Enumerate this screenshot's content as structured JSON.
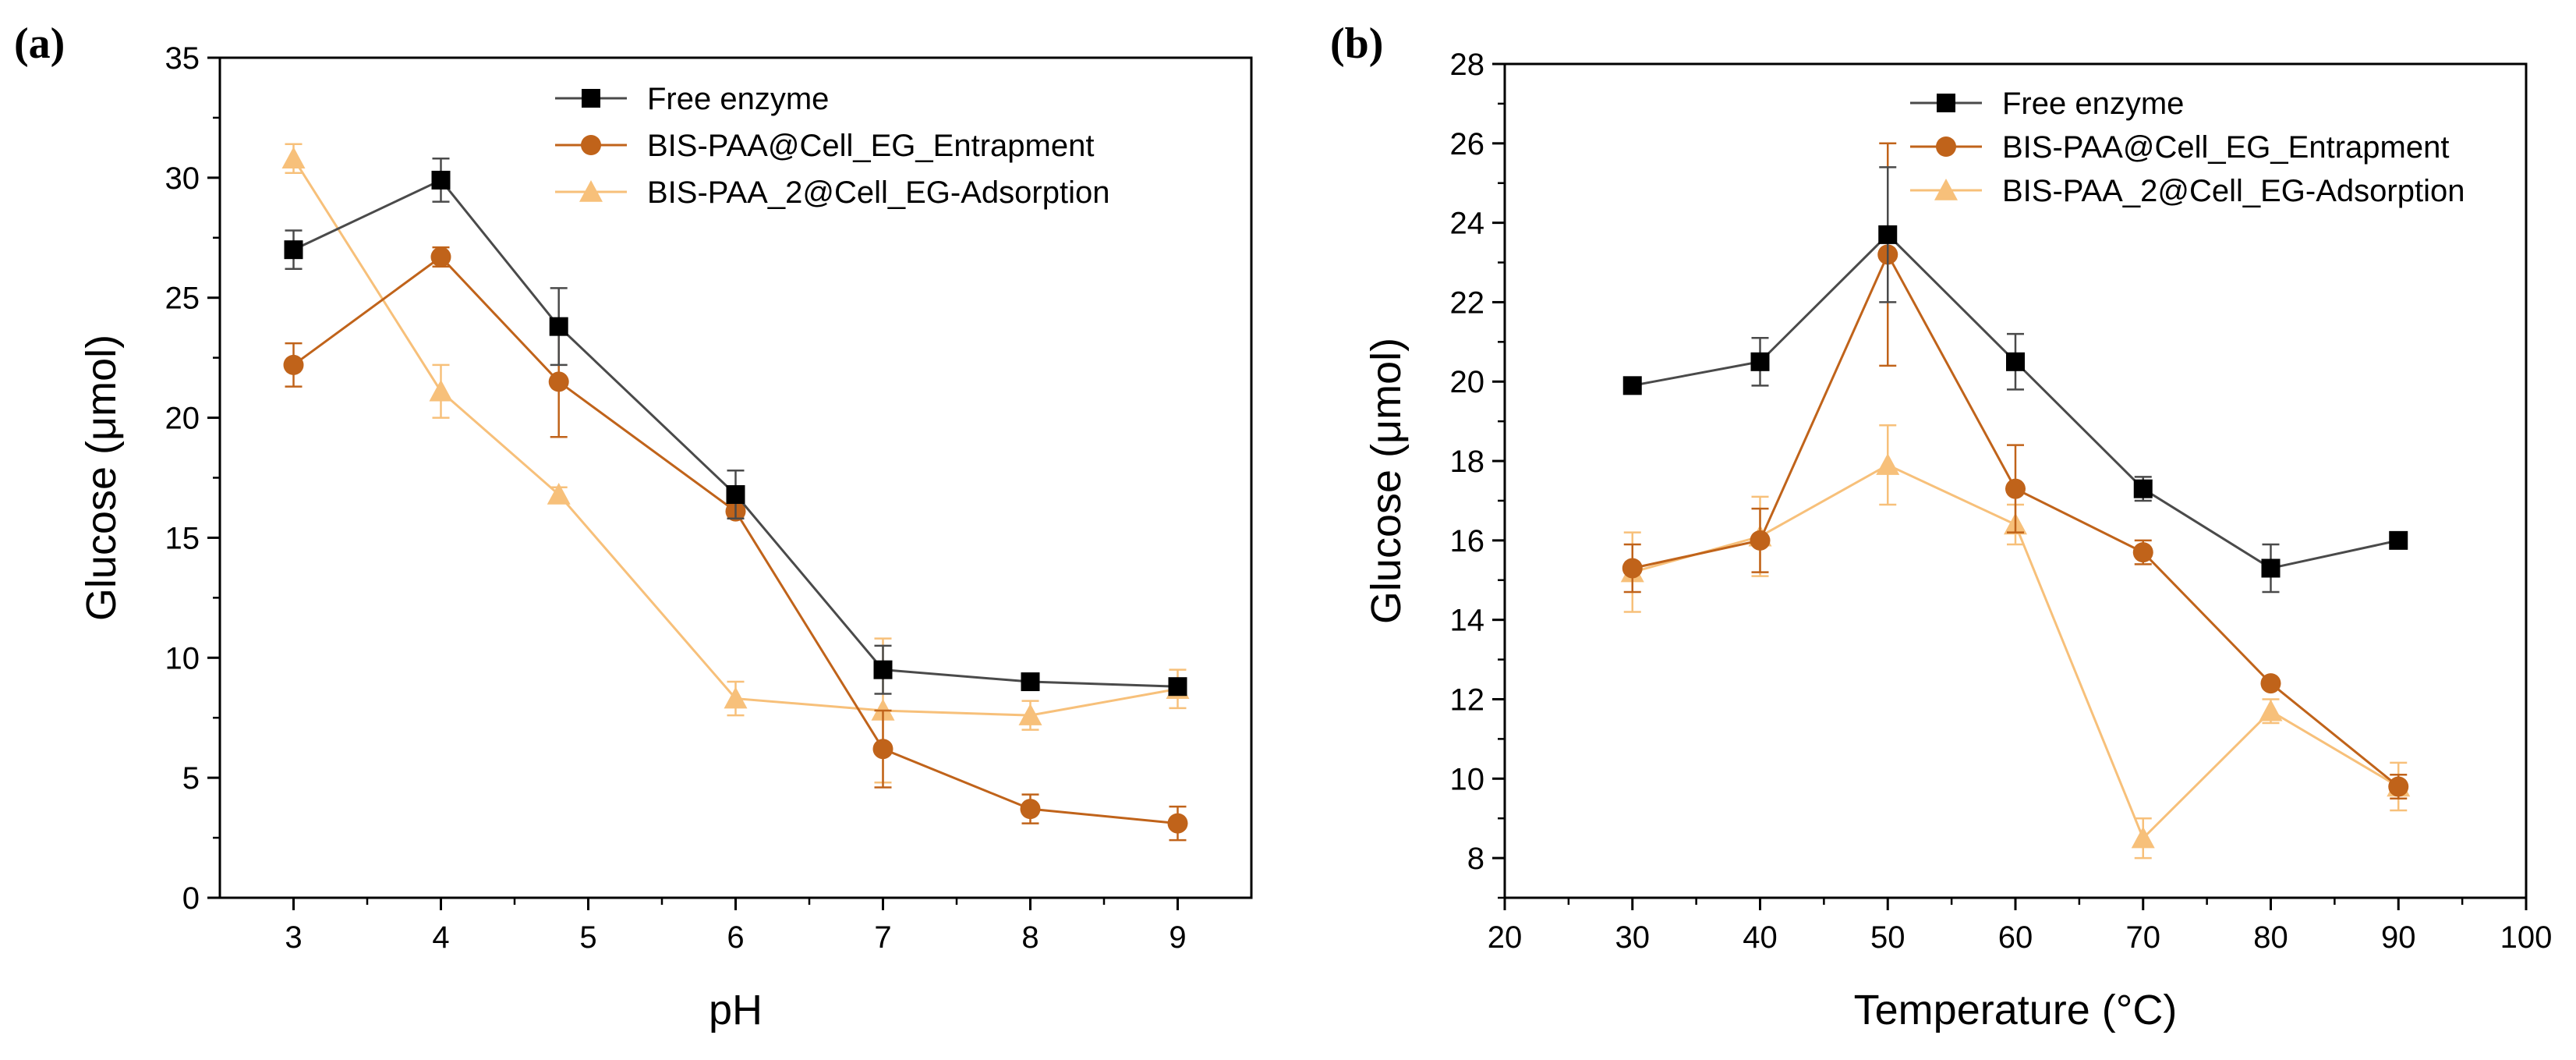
{
  "chart_data": [
    {
      "panel_label": "(a)",
      "type": "line",
      "xlabel": "pH",
      "ylabel": "Glucose (μmol)",
      "x": [
        3,
        4,
        4.8,
        6,
        7,
        8,
        9
      ],
      "xlim": [
        2.5,
        9.5
      ],
      "ylim": [
        0,
        35
      ],
      "xticks": [
        3,
        4,
        5,
        6,
        7,
        8,
        9
      ],
      "yticks": [
        0,
        5,
        10,
        15,
        20,
        25,
        30,
        35
      ],
      "grid": false,
      "legend_position": "top-right",
      "series": [
        {
          "name": "Free enzyme",
          "marker": "square",
          "color": "#000000",
          "line_color": "#4a4a4a",
          "values": [
            27.0,
            29.9,
            23.8,
            16.8,
            9.5,
            9.0,
            8.8
          ],
          "errors": [
            0.8,
            0.9,
            1.6,
            1.0,
            1.0,
            0.3,
            0.3
          ]
        },
        {
          "name": "BIS-PAA@Cell_EG_Entrapment",
          "marker": "circle",
          "color": "#c0631a",
          "line_color": "#c0631a",
          "values": [
            22.2,
            26.7,
            21.5,
            16.1,
            6.2,
            3.7,
            3.1
          ],
          "errors": [
            0.9,
            0.4,
            2.3,
            0.3,
            1.6,
            0.6,
            0.7
          ]
        },
        {
          "name": "BIS-PAA_2@Cell_EG-Adsorption",
          "marker": "triangle",
          "color": "#f7c07a",
          "line_color": "#f7c07a",
          "values": [
            30.8,
            21.1,
            16.8,
            8.3,
            7.8,
            7.6,
            8.7
          ],
          "errors": [
            0.6,
            1.1,
            0.3,
            0.7,
            3.0,
            0.6,
            0.8
          ]
        }
      ]
    },
    {
      "panel_label": "(b)",
      "type": "line",
      "xlabel": "Temperature (°C)",
      "ylabel": "Glucose (μmol)",
      "x": [
        30,
        40,
        50,
        60,
        70,
        80,
        90
      ],
      "xlim": [
        20,
        100
      ],
      "ylim": [
        7,
        28
      ],
      "xticks": [
        20,
        30,
        40,
        50,
        60,
        70,
        80,
        90,
        100
      ],
      "yticks": [
        8,
        10,
        12,
        14,
        16,
        18,
        20,
        22,
        24,
        26,
        28
      ],
      "grid": false,
      "legend_position": "top-right",
      "series": [
        {
          "name": "Free enzyme",
          "marker": "square",
          "color": "#000000",
          "line_color": "#4a4a4a",
          "values": [
            19.9,
            20.5,
            23.7,
            20.5,
            17.3,
            15.3,
            16.0
          ],
          "errors": [
            0.2,
            0.6,
            1.7,
            0.7,
            0.3,
            0.6,
            0.1
          ]
        },
        {
          "name": "BIS-PAA@Cell_EG_Entrapment",
          "marker": "circle",
          "color": "#c0631a",
          "line_color": "#c0631a",
          "values": [
            15.3,
            16.0,
            23.2,
            17.3,
            15.7,
            12.4,
            9.8
          ],
          "errors": [
            0.6,
            0.8,
            2.8,
            1.1,
            0.3,
            0.1,
            0.3
          ]
        },
        {
          "name": "BIS-PAA_2@Cell_EG-Adsorption",
          "marker": "triangle",
          "color": "#f7c07a",
          "line_color": "#f7c07a",
          "values": [
            15.2,
            16.1,
            17.9,
            16.4,
            8.5,
            11.7,
            9.8
          ],
          "errors": [
            1.0,
            1.0,
            1.0,
            0.5,
            0.5,
            0.3,
            0.6
          ]
        }
      ]
    }
  ]
}
